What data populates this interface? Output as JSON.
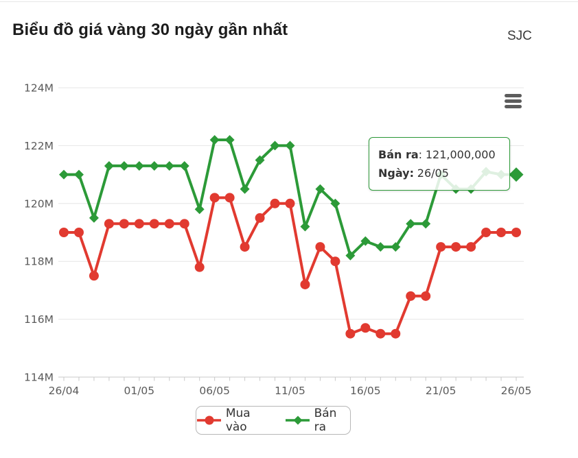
{
  "header": {
    "title": "Biểu đồ giá vàng 30 ngày gần nhất",
    "brand": "SJC"
  },
  "toolbar": {
    "menu_icon": "hamburger-icon"
  },
  "chart_data": {
    "type": "line",
    "title": "Biểu đồ giá vàng 30 ngày gần nhất",
    "unit": "VND (M = million)",
    "grid": true,
    "legend_position": "bottom",
    "ylim_millions": [
      114,
      124
    ],
    "y_tick_labels": [
      "124M",
      "122M",
      "120M",
      "118M",
      "116M",
      "114M"
    ],
    "x_major_tick_labels": [
      "26/04",
      "01/05",
      "06/05",
      "11/05",
      "16/05",
      "21/05",
      "26/05"
    ],
    "x": [
      "26/04",
      "27/04",
      "28/04",
      "29/04",
      "30/04",
      "01/05",
      "02/05",
      "03/05",
      "04/05",
      "05/05",
      "06/05",
      "07/05",
      "08/05",
      "09/05",
      "10/05",
      "11/05",
      "12/05",
      "13/05",
      "14/05",
      "15/05",
      "16/05",
      "17/05",
      "18/05",
      "19/05",
      "20/05",
      "21/05",
      "22/05",
      "23/05",
      "24/05",
      "25/05",
      "26/05"
    ],
    "series": [
      {
        "name": "Mua vào",
        "color": "#e13a30",
        "marker": "circle",
        "values_millions": [
          119.0,
          119.0,
          117.5,
          119.3,
          119.3,
          119.3,
          119.3,
          119.3,
          119.3,
          117.8,
          120.2,
          120.2,
          118.5,
          119.5,
          120.0,
          120.0,
          117.2,
          118.5,
          118.0,
          115.5,
          115.7,
          115.5,
          115.5,
          116.8,
          116.8,
          118.5,
          118.5,
          118.5,
          119.0,
          119.0,
          119.0
        ]
      },
      {
        "name": "Bán ra",
        "color": "#2c9a38",
        "marker": "diamond",
        "values_millions": [
          121.0,
          121.0,
          119.5,
          121.3,
          121.3,
          121.3,
          121.3,
          121.3,
          121.3,
          119.8,
          122.2,
          122.2,
          120.5,
          121.5,
          122.0,
          122.0,
          119.2,
          120.5,
          120.0,
          118.2,
          118.7,
          118.5,
          118.5,
          119.3,
          119.3,
          121.0,
          120.5,
          120.5,
          121.1,
          121.0,
          121.0
        ]
      }
    ],
    "highlight": {
      "series": "Bán ra",
      "x": "26/05"
    }
  },
  "tooltip": {
    "series_label": "Bán ra",
    "separator": ":",
    "value": "121,000,000",
    "date_label": "Ngày:",
    "date": "26/05"
  },
  "legend": {
    "items": [
      {
        "label": "Mua vào"
      },
      {
        "label": "Bán ra"
      }
    ]
  }
}
